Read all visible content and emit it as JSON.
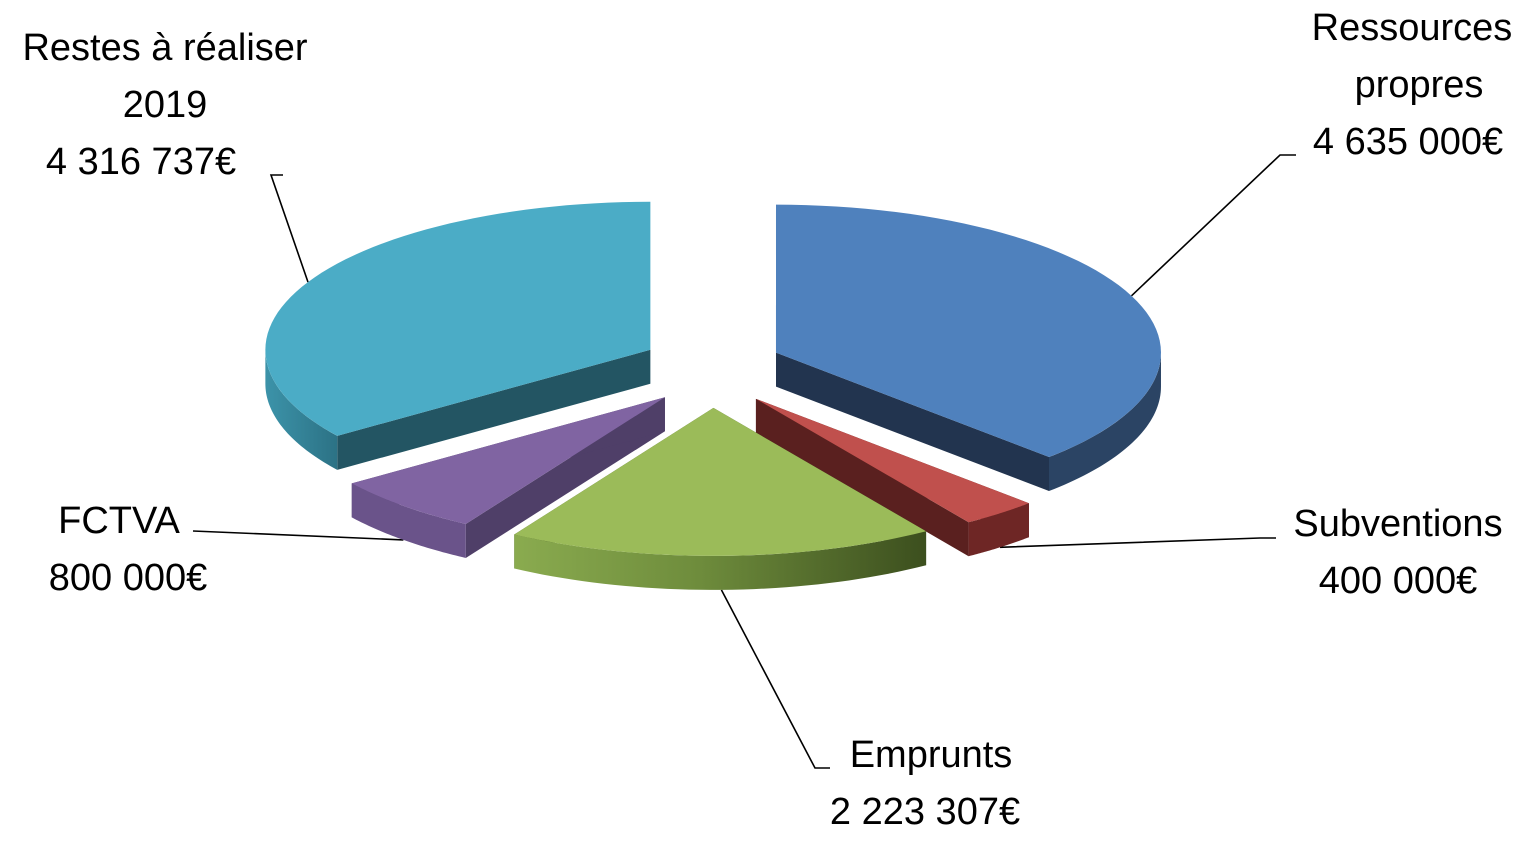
{
  "chart_data": {
    "type": "pie",
    "style": "3d-exploded",
    "slices": [
      {
        "label": "Ressources propres",
        "value": 4635000,
        "value_label": "4 635 000€",
        "color": "#4f81bd"
      },
      {
        "label": "Subventions",
        "value": 400000,
        "value_label": "400 000€",
        "color": "#c0504d"
      },
      {
        "label": "Emprunts",
        "value": 2223307,
        "value_label": "2 223 307€",
        "color": "#9bbb59"
      },
      {
        "label": "FCTVA",
        "value": 800000,
        "value_label": "800 000€",
        "color": "#8064a2"
      },
      {
        "label": "Restes à réaliser 2019",
        "value": 4316737,
        "value_label": "4 316 737€",
        "color": "#4bacc6"
      }
    ]
  },
  "labels": {
    "ressources": {
      "line1": "Ressources",
      "line2": "propres",
      "line3": "4 635 000€"
    },
    "subventions": {
      "line1": "Subventions",
      "line2": "400 000€"
    },
    "emprunts": {
      "line1": "Emprunts",
      "line2": "2 223 307€"
    },
    "fctva": {
      "line1": "FCTVA",
      "line2": "800 000€"
    },
    "restes": {
      "line1": "Restes à réaliser",
      "line2": "2019",
      "line3": "4 316 737€"
    }
  }
}
